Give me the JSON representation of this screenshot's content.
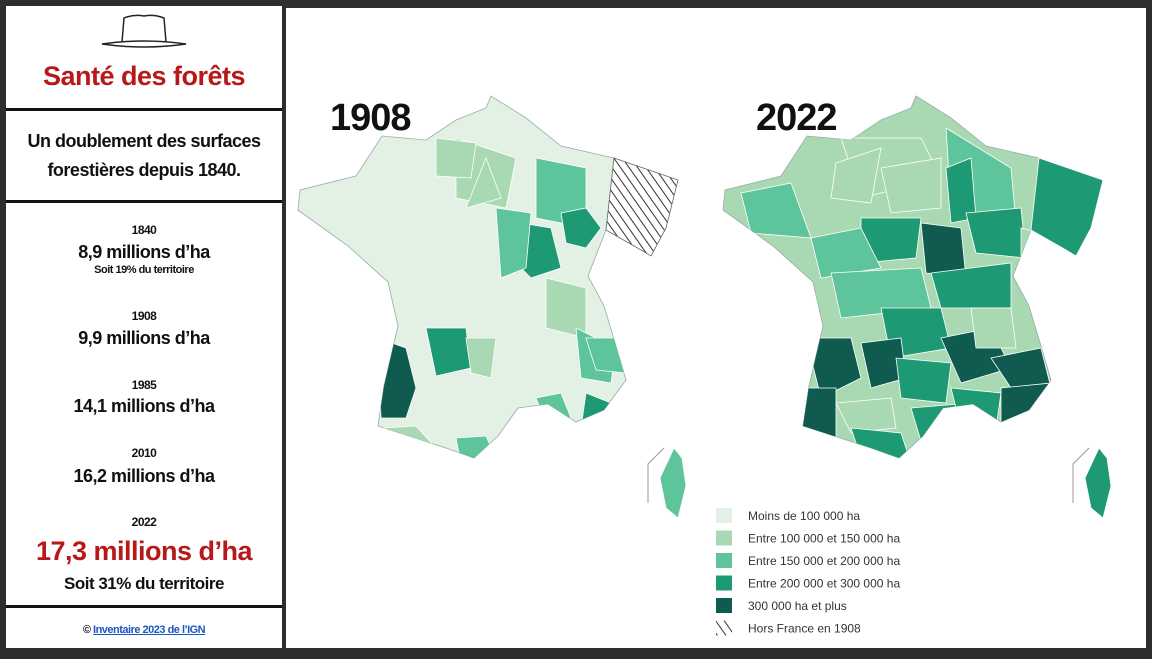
{
  "sidebar": {
    "title": "Santé des forêts",
    "subtitle": [
      "Un doublement des surfaces",
      "forestières depuis 1840."
    ],
    "stats": [
      {
        "year": "1840",
        "value": "8,9 millions d’ha",
        "note": "Soit 19% du territoire"
      },
      {
        "year": "1908",
        "value": "9,9 millions d’ha"
      },
      {
        "year": "1985",
        "value": "14,1 millions d’ha"
      },
      {
        "year": "2010",
        "value": "16,2 millions d’ha"
      },
      {
        "year": "2022",
        "value": "17,3 millions d’ha",
        "note": "Soit 31% du territoire"
      }
    ],
    "credit": {
      "symbol": "©",
      "link": "Inventaire 2023 de l’IGN"
    }
  },
  "maps": [
    {
      "title": "1908"
    },
    {
      "title": "2022"
    }
  ],
  "legend": [
    {
      "label": "Moins de 100 000 ha",
      "color": "#e2f1e3"
    },
    {
      "label": "Entre 100 000 et 150 000 ha",
      "color": "#a9d9b2"
    },
    {
      "label": "Entre 150 000 et 200 000 ha",
      "color": "#5ec49c"
    },
    {
      "label": "Entre 200 000 et 300 000 ha",
      "color": "#1d9a74"
    },
    {
      "label": "300 000 ha et plus",
      "color": "#0f5b4f"
    },
    {
      "label": "Hors France en 1908",
      "color": "hatch"
    }
  ]
}
